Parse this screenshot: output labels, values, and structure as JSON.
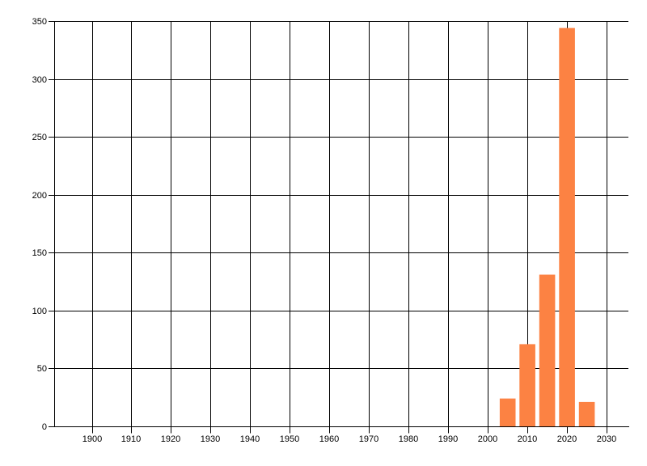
{
  "chart_data": {
    "type": "bar",
    "title": "",
    "subtitle": "",
    "xlabel": "",
    "ylabel": "",
    "categories": [
      2005,
      2010,
      2015,
      2020,
      2025
    ],
    "values": [
      24,
      71,
      131,
      344,
      21
    ],
    "bar_width_x_units": 4,
    "xlim": [
      1890.5,
      2035.5
    ],
    "ylim": [
      0,
      350
    ],
    "x_ticks": [
      1900,
      1910,
      1920,
      1930,
      1940,
      1950,
      1960,
      1970,
      1980,
      1990,
      2000,
      2010,
      2020,
      2030
    ],
    "y_ticks": [
      0,
      50,
      100,
      150,
      200,
      250,
      300,
      350
    ],
    "grid": "both",
    "legend": "none",
    "colors": {
      "bar": "#FC8243",
      "grid": "#000000",
      "axis": "#000000",
      "text": "#000000",
      "background": "#FFFFFF"
    }
  }
}
